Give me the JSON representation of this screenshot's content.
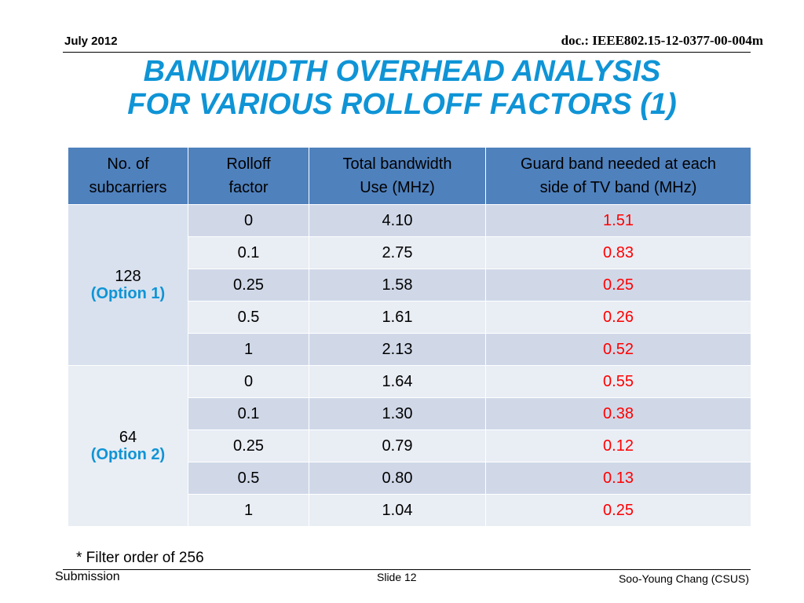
{
  "header": {
    "date": "July 2012",
    "doc_id": "doc.: IEEE802.15-12-0377-00-004m"
  },
  "title": {
    "line1": "BANDWIDTH OVERHEAD ANALYSIS",
    "line2": "FOR VARIOUS ROLLOFF FACTORS (1)"
  },
  "table": {
    "headers": [
      [
        "No. of",
        "subcarriers"
      ],
      [
        "Rolloff",
        "factor"
      ],
      [
        "Total bandwidth",
        "Use (MHz)"
      ],
      [
        "Guard band needed at each",
        "side of TV band (MHz)"
      ]
    ],
    "groups": [
      {
        "subcarriers": "128",
        "option": "(Option 1)",
        "rows": [
          {
            "rolloff": "0",
            "bandwidth": "4.10",
            "guard": "1.51"
          },
          {
            "rolloff": "0.1",
            "bandwidth": "2.75",
            "guard": "0.83"
          },
          {
            "rolloff": "0.25",
            "bandwidth": "1.58",
            "guard": "0.25"
          },
          {
            "rolloff": "0.5",
            "bandwidth": "1.61",
            "guard": "0.26"
          },
          {
            "rolloff": "1",
            "bandwidth": "2.13",
            "guard": "0.52"
          }
        ]
      },
      {
        "subcarriers": "64",
        "option": "(Option 2)",
        "rows": [
          {
            "rolloff": "0",
            "bandwidth": "1.64",
            "guard": "0.55"
          },
          {
            "rolloff": "0.1",
            "bandwidth": "1.30",
            "guard": "0.38"
          },
          {
            "rolloff": "0.25",
            "bandwidth": "0.79",
            "guard": "0.12"
          },
          {
            "rolloff": "0.5",
            "bandwidth": "0.80",
            "guard": "0.13"
          },
          {
            "rolloff": "1",
            "bandwidth": "1.04",
            "guard": "0.25"
          }
        ]
      }
    ]
  },
  "footnote": "* Filter order of 256",
  "footer": {
    "left": "Submission",
    "center": "Slide 12",
    "right": "Soo-Young Chang (CSUS)"
  },
  "colors": {
    "title": "#0f94d6",
    "header_fill": "#4f81bd",
    "row_dark": "#d0d8e8",
    "row_light": "#e9edf4",
    "guard_text": "#ff0000"
  }
}
